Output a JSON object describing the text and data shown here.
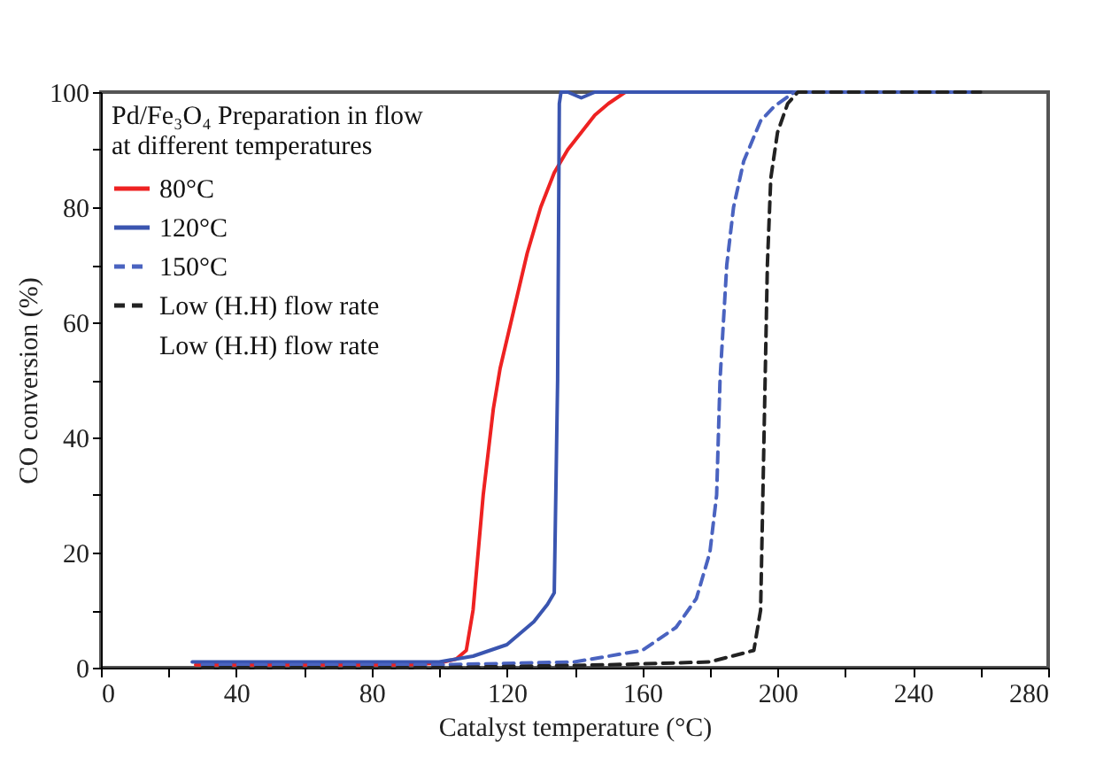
{
  "chart_data": {
    "type": "line",
    "xlabel": "Catalyst temperature (°C)",
    "ylabel": "CO conversion (%)",
    "legend_title": "Pd/Fe₃O₄ Preparation in flow\nat different temperatures",
    "legend": "top left",
    "marker": "none",
    "grid": false,
    "xlim": [
      0,
      280
    ],
    "xticks": [
      0,
      {
        "value": 20,
        "label": null
      },
      40,
      {
        "value": 60,
        "label": null
      },
      80,
      {
        "value": 100,
        "label": null
      },
      120,
      {
        "value": 140,
        "label": null
      },
      160,
      {
        "value": 180,
        "label": null
      },
      200,
      {
        "value": 220,
        "label": null
      },
      240,
      {
        "value": 260,
        "label": null
      },
      280
    ],
    "ylim": [
      0,
      100
    ],
    "yticks": [
      0,
      {
        "value": 10,
        "label": null
      },
      20,
      {
        "value": 30,
        "label": null
      },
      40,
      {
        "value": 50,
        "label": null
      },
      60,
      {
        "value": 70,
        "label": null
      },
      80,
      {
        "value": 90,
        "label": null
      },
      100
    ],
    "annotations": [
      "Low (H.H) flow rate"
    ],
    "series": [
      {
        "name": "80°C",
        "color": "#ee2222",
        "line_style": "solid",
        "x": [
          28,
          50,
          70,
          90,
          100,
          105,
          108,
          110,
          113,
          116,
          118,
          122,
          126,
          130,
          134,
          138,
          142,
          146,
          150,
          155
        ],
        "values": [
          0.5,
          0.5,
          0.5,
          0.5,
          0.8,
          1.5,
          3,
          10,
          30,
          45,
          52,
          62,
          72,
          80,
          86,
          90,
          93,
          96,
          98,
          100
        ]
      },
      {
        "name": "120°C",
        "color": "#3a55b0",
        "line_style": "solid",
        "x": [
          27,
          50,
          70,
          90,
          100,
          110,
          120,
          128,
          132,
          134,
          135,
          135.5,
          136,
          138,
          142,
          146,
          160,
          180,
          200,
          220,
          240,
          258
        ],
        "values": [
          1,
          1,
          1,
          1,
          1,
          2,
          4,
          8,
          11,
          13,
          50,
          98,
          100,
          100,
          99,
          100,
          100,
          100,
          100,
          100,
          100,
          100
        ]
      },
      {
        "name": "150°C",
        "color": "#4a63c0",
        "line_style": "dashed",
        "x": [
          30,
          60,
          100,
          140,
          150,
          160,
          170,
          176,
          180,
          182,
          183,
          185,
          187,
          190,
          195,
          199,
          205,
          230,
          256
        ],
        "values": [
          0.5,
          0.5,
          0.5,
          1,
          2,
          3,
          7,
          12,
          20,
          30,
          50,
          70,
          80,
          88,
          95,
          97.5,
          100,
          100,
          100
        ]
      },
      {
        "name": "Low (H.H) flow rate",
        "color": "#222222",
        "line_style": "dashed",
        "x": [
          30,
          60,
          100,
          150,
          180,
          193,
          195,
          196,
          197,
          198,
          200,
          203,
          206,
          230,
          260
        ],
        "values": [
          0,
          0,
          0,
          0.5,
          1,
          3,
          10,
          40,
          70,
          85,
          93,
          98,
          100,
          100,
          100
        ]
      }
    ]
  }
}
